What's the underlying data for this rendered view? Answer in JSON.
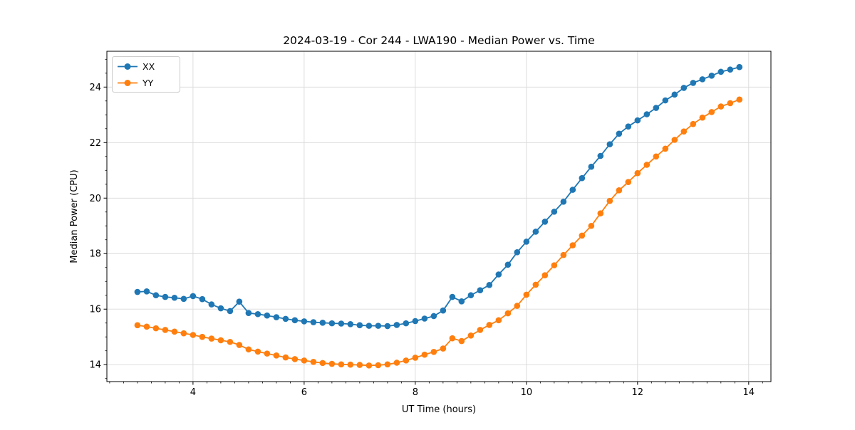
{
  "chart_data": {
    "type": "line",
    "title": "2024-03-19 - Cor 244 - LWA190 - Median Power vs. Time",
    "xlabel": "UT Time (hours)",
    "ylabel": "Median Power (CPU)",
    "xlim": [
      2.45,
      14.4
    ],
    "ylim": [
      13.39,
      25.29
    ],
    "xticks": [
      4,
      6,
      8,
      10,
      12,
      14
    ],
    "yticks": [
      14,
      16,
      18,
      20,
      22,
      24
    ],
    "x_minor_step": 0.25,
    "y_minor_step": 0.5,
    "grid": true,
    "legend_position": "upper left",
    "x": [
      3.0,
      3.167,
      3.333,
      3.5,
      3.667,
      3.833,
      4.0,
      4.167,
      4.333,
      4.5,
      4.667,
      4.833,
      5.0,
      5.167,
      5.333,
      5.5,
      5.667,
      5.833,
      6.0,
      6.167,
      6.333,
      6.5,
      6.667,
      6.833,
      7.0,
      7.167,
      7.333,
      7.5,
      7.667,
      7.833,
      8.0,
      8.167,
      8.333,
      8.5,
      8.667,
      8.833,
      9.0,
      9.167,
      9.333,
      9.5,
      9.667,
      9.833,
      10.0,
      10.167,
      10.333,
      10.5,
      10.667,
      10.833,
      11.0,
      11.167,
      11.333,
      11.5,
      11.667,
      11.833,
      12.0,
      12.167,
      12.333,
      12.5,
      12.667,
      12.833,
      13.0,
      13.167,
      13.333,
      13.5,
      13.667,
      13.833
    ],
    "series": [
      {
        "name": "XX",
        "color": "#1f77b4",
        "marker": "circle",
        "values": [
          16.62,
          16.64,
          16.5,
          16.44,
          16.41,
          16.37,
          16.47,
          16.36,
          16.17,
          16.03,
          15.93,
          16.27,
          15.86,
          15.82,
          15.77,
          15.71,
          15.65,
          15.6,
          15.56,
          15.53,
          15.51,
          15.49,
          15.48,
          15.46,
          15.42,
          15.4,
          15.4,
          15.39,
          15.43,
          15.49,
          15.57,
          15.66,
          15.75,
          15.95,
          16.44,
          16.28,
          16.5,
          16.68,
          16.87,
          17.25,
          17.6,
          18.05,
          18.43,
          18.79,
          19.15,
          19.51,
          19.87,
          20.3,
          20.72,
          21.13,
          21.52,
          21.94,
          22.32,
          22.58,
          22.8,
          23.02,
          23.25,
          23.52,
          23.73,
          23.97,
          24.15,
          24.28,
          24.41,
          24.55,
          24.63,
          24.72
        ]
      },
      {
        "name": "YY",
        "color": "#ff7f0e",
        "marker": "circle",
        "values": [
          15.42,
          15.37,
          15.31,
          15.25,
          15.19,
          15.13,
          15.07,
          15.0,
          14.94,
          14.88,
          14.82,
          14.71,
          14.55,
          14.47,
          14.4,
          14.33,
          14.26,
          14.2,
          14.15,
          14.1,
          14.06,
          14.03,
          14.01,
          14.0,
          13.99,
          13.97,
          13.98,
          14.01,
          14.07,
          14.15,
          14.25,
          14.36,
          14.46,
          14.58,
          14.95,
          14.85,
          15.05,
          15.25,
          15.43,
          15.6,
          15.85,
          16.12,
          16.52,
          16.88,
          17.22,
          17.58,
          17.95,
          18.3,
          18.65,
          19.0,
          19.45,
          19.9,
          20.28,
          20.58,
          20.9,
          21.2,
          21.5,
          21.78,
          22.1,
          22.4,
          22.67,
          22.9,
          23.1,
          23.3,
          23.42,
          23.55
        ]
      }
    ],
    "style": {
      "background": "#ffffff",
      "grid_color": "#d9d9d9",
      "spine_color": "#000000",
      "tick_color": "#000000",
      "legend_border": "#cccccc"
    }
  }
}
